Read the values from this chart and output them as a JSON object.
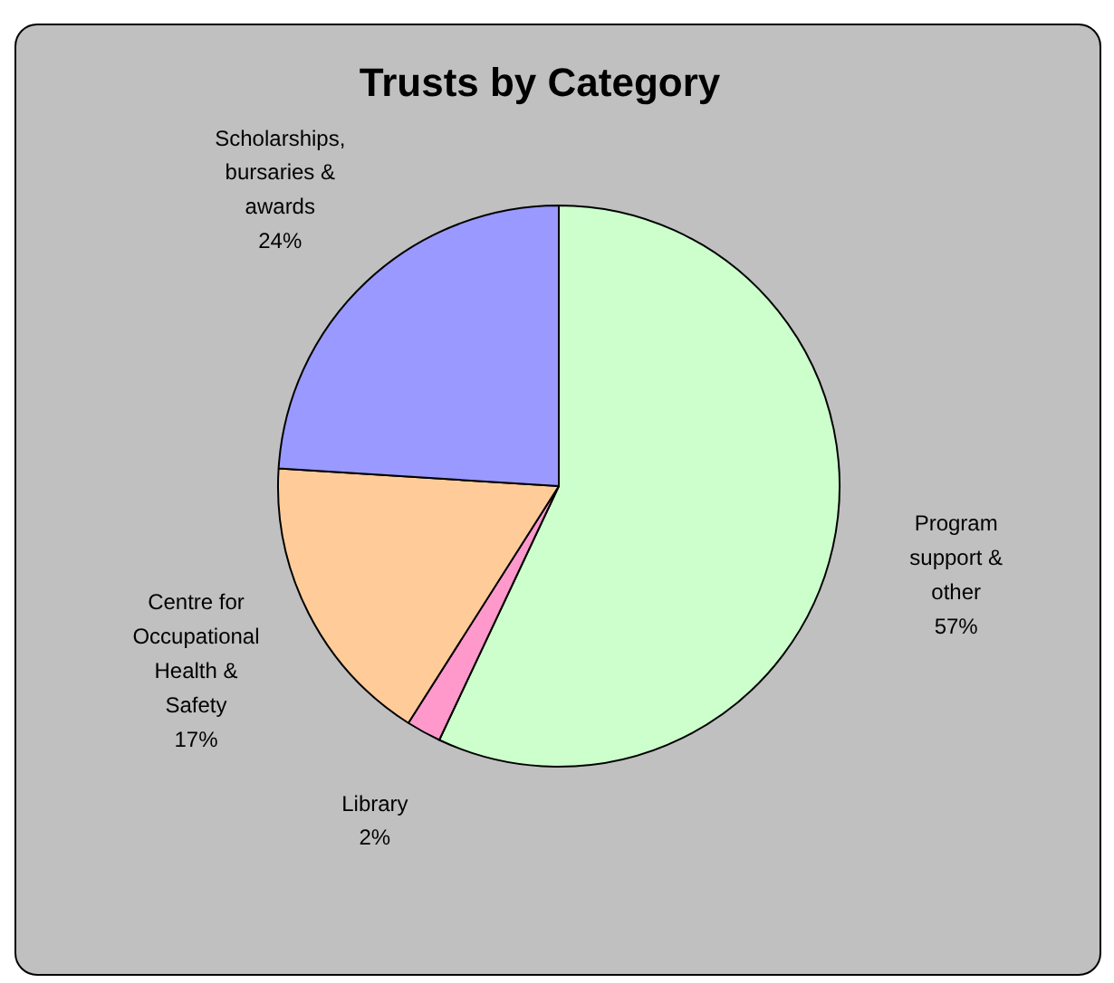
{
  "chart_data": {
    "type": "pie",
    "title": "Trusts by Category",
    "categories": [
      "Program support & other",
      "Library",
      "Centre for Occupational Health & Safety",
      "Scholarships, bursaries & awards"
    ],
    "values": [
      57,
      2,
      17,
      24
    ],
    "value_labels": [
      "57%",
      "2%",
      "17%",
      "24%"
    ],
    "colors": [
      "#ccffcc",
      "#ff99cc",
      "#ffcc99",
      "#9999ff"
    ]
  }
}
